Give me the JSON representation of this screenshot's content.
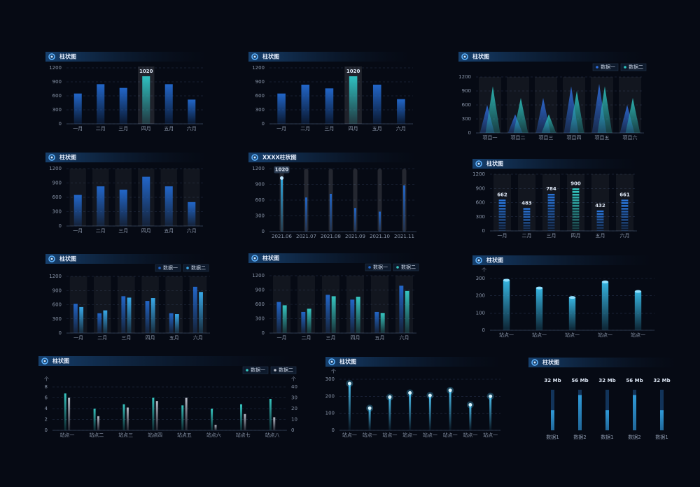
{
  "chart_data": [
    {
      "type": "bar",
      "title": "柱状图",
      "categories": [
        "一月",
        "二月",
        "三月",
        "四月",
        "五月",
        "六月"
      ],
      "values": [
        650,
        850,
        770,
        1020,
        850,
        520
      ],
      "highlight": 3,
      "color": "#2266c8",
      "highlight_color": "#2fc0c0",
      "ylim": [
        0,
        1200
      ],
      "yticks": [
        0,
        300,
        600,
        900,
        1200
      ],
      "grid": true
    },
    {
      "type": "bar",
      "title": "柱状图",
      "categories": [
        "一月",
        "二月",
        "三月",
        "四月",
        "五月",
        "六月"
      ],
      "values": [
        650,
        840,
        760,
        1020,
        840,
        530
      ],
      "highlight": 3,
      "color": "#2266c8",
      "highlight_color": "#2fc0c0",
      "ylim": [
        0,
        1200
      ],
      "yticks": [
        0,
        300,
        600,
        900,
        1200
      ],
      "grid": true
    },
    {
      "type": "triangle",
      "title": "柱状图",
      "categories": [
        "项目一",
        "项目二",
        "项目三",
        "项目四",
        "项目五",
        "项目六"
      ],
      "series": [
        {
          "name": "数据一",
          "color": "#2f6fe0",
          "values": [
            600,
            400,
            750,
            1000,
            1050,
            600
          ]
        },
        {
          "name": "数据二",
          "color": "#2ec4c0",
          "values": [
            1000,
            750,
            400,
            900,
            1000,
            750
          ]
        }
      ],
      "ylim": [
        0,
        1200
      ],
      "yticks": [
        0,
        300,
        600,
        900,
        1200
      ],
      "grid": true,
      "legend": "top-right"
    },
    {
      "type": "bar",
      "title": "柱状图",
      "categories": [
        "一月",
        "二月",
        "三月",
        "四月",
        "五月",
        "六月"
      ],
      "values": [
        650,
        830,
        760,
        1030,
        830,
        500
      ],
      "color": "#2266c8",
      "ylim": [
        0,
        1200
      ],
      "yticks": [
        0,
        300,
        600,
        900,
        1200
      ],
      "grid": true
    },
    {
      "type": "bar",
      "title": "XXXX柱状图",
      "categories": [
        "2021.06",
        "2021.07",
        "2021.08",
        "2021.09",
        "2021.10",
        "2021.11"
      ],
      "values": [
        1020,
        650,
        720,
        450,
        380,
        880
      ],
      "highlight": 0,
      "color": "#2266c8",
      "highlight_color": "#2fa8e0",
      "ylim": [
        0,
        1200
      ],
      "yticks": [
        0,
        300,
        600,
        900,
        1200
      ],
      "grid": true
    },
    {
      "type": "bar",
      "title": "柱状图",
      "categories": [
        "一月",
        "二月",
        "三月",
        "四月",
        "五月",
        "六月"
      ],
      "values": [
        662,
        483,
        784,
        900,
        432,
        661
      ],
      "highlight": 3,
      "show_values": true,
      "color": "#2a78e0",
      "highlight_color": "#36d0c8",
      "ylim": [
        0,
        1200
      ],
      "yticks": [
        0,
        300,
        600,
        900,
        1200
      ],
      "grid": true
    },
    {
      "type": "bar",
      "title": "柱状图",
      "categories": [
        "一月",
        "二月",
        "三月",
        "四月",
        "五月",
        "六月"
      ],
      "series": [
        {
          "name": "数据一",
          "color": "#2266c8",
          "values": [
            620,
            420,
            780,
            680,
            420,
            980
          ]
        },
        {
          "name": "数据二",
          "color": "#38a8e8",
          "values": [
            550,
            480,
            750,
            740,
            400,
            870
          ]
        }
      ],
      "ylim": [
        0,
        1200
      ],
      "yticks": [
        0,
        300,
        600,
        900,
        1200
      ],
      "grid": true,
      "legend": "top-right"
    },
    {
      "type": "bar",
      "title": "柱状图",
      "categories": [
        "一月",
        "二月",
        "三月",
        "四月",
        "五月",
        "六月"
      ],
      "series": [
        {
          "name": "数据一",
          "color": "#2266c8",
          "values": [
            650,
            440,
            800,
            700,
            440,
            990
          ]
        },
        {
          "name": "数据二",
          "color": "#36c6c0",
          "values": [
            580,
            510,
            770,
            760,
            420,
            880
          ]
        }
      ],
      "ylim": [
        0,
        1200
      ],
      "yticks": [
        0,
        300,
        600,
        900,
        1200
      ],
      "grid": true,
      "legend": "top-right"
    },
    {
      "type": "bar",
      "title": "柱状图",
      "y_label": "个",
      "categories": [
        "站点一",
        "站点一",
        "站点一",
        "站点一",
        "站点一"
      ],
      "values": [
        290,
        245,
        190,
        280,
        225
      ],
      "color": "#36b4e0",
      "ylim": [
        0,
        300
      ],
      "yticks": [
        0,
        100,
        200,
        300
      ],
      "grid": true
    },
    {
      "type": "bar",
      "title": "柱状图",
      "y_label": "个",
      "y2_label": "个",
      "categories": [
        "站点一",
        "站点二",
        "站点三",
        "站点四",
        "站点五",
        "站点六",
        "站点七",
        "站点八"
      ],
      "series": [
        {
          "name": "数据一",
          "color": "#36c6c0",
          "values": [
            6.8,
            4,
            4.8,
            6,
            4.6,
            4,
            4.8,
            5.8
          ]
        },
        {
          "name": "数据二",
          "color": "#b8bcc8",
          "axis": "y2",
          "values": [
            30,
            13,
            21,
            27,
            30,
            5,
            15,
            12
          ]
        }
      ],
      "ylim": [
        0,
        8
      ],
      "yticks": [
        0,
        2,
        4,
        6,
        8
      ],
      "y2lim": [
        0,
        40
      ],
      "y2ticks": [
        0,
        10,
        20,
        30,
        40
      ],
      "grid": true,
      "legend": "top-right"
    },
    {
      "type": "bar",
      "title": "柱状图",
      "y_label": "个",
      "categories": [
        "站点一",
        "站点一",
        "站点一",
        "站点一",
        "站点一",
        "站点一",
        "站点一",
        "站点一"
      ],
      "values": [
        275,
        130,
        195,
        220,
        205,
        235,
        150,
        200
      ],
      "color": "#4ac0f0",
      "ylim": [
        0,
        300
      ],
      "yticks": [
        0,
        100,
        200,
        300
      ],
      "grid": true
    },
    {
      "type": "progress",
      "title": "柱状图",
      "categories": [
        "数据1",
        "数据2",
        "数据1",
        "数据2",
        "数据1"
      ],
      "values": [
        32,
        56,
        32,
        56,
        32
      ],
      "value_labels": [
        "32 Mb",
        "56 Mb",
        "32 Mb",
        "56 Mb",
        "32 Mb"
      ],
      "color": "#2f9ad8"
    }
  ]
}
